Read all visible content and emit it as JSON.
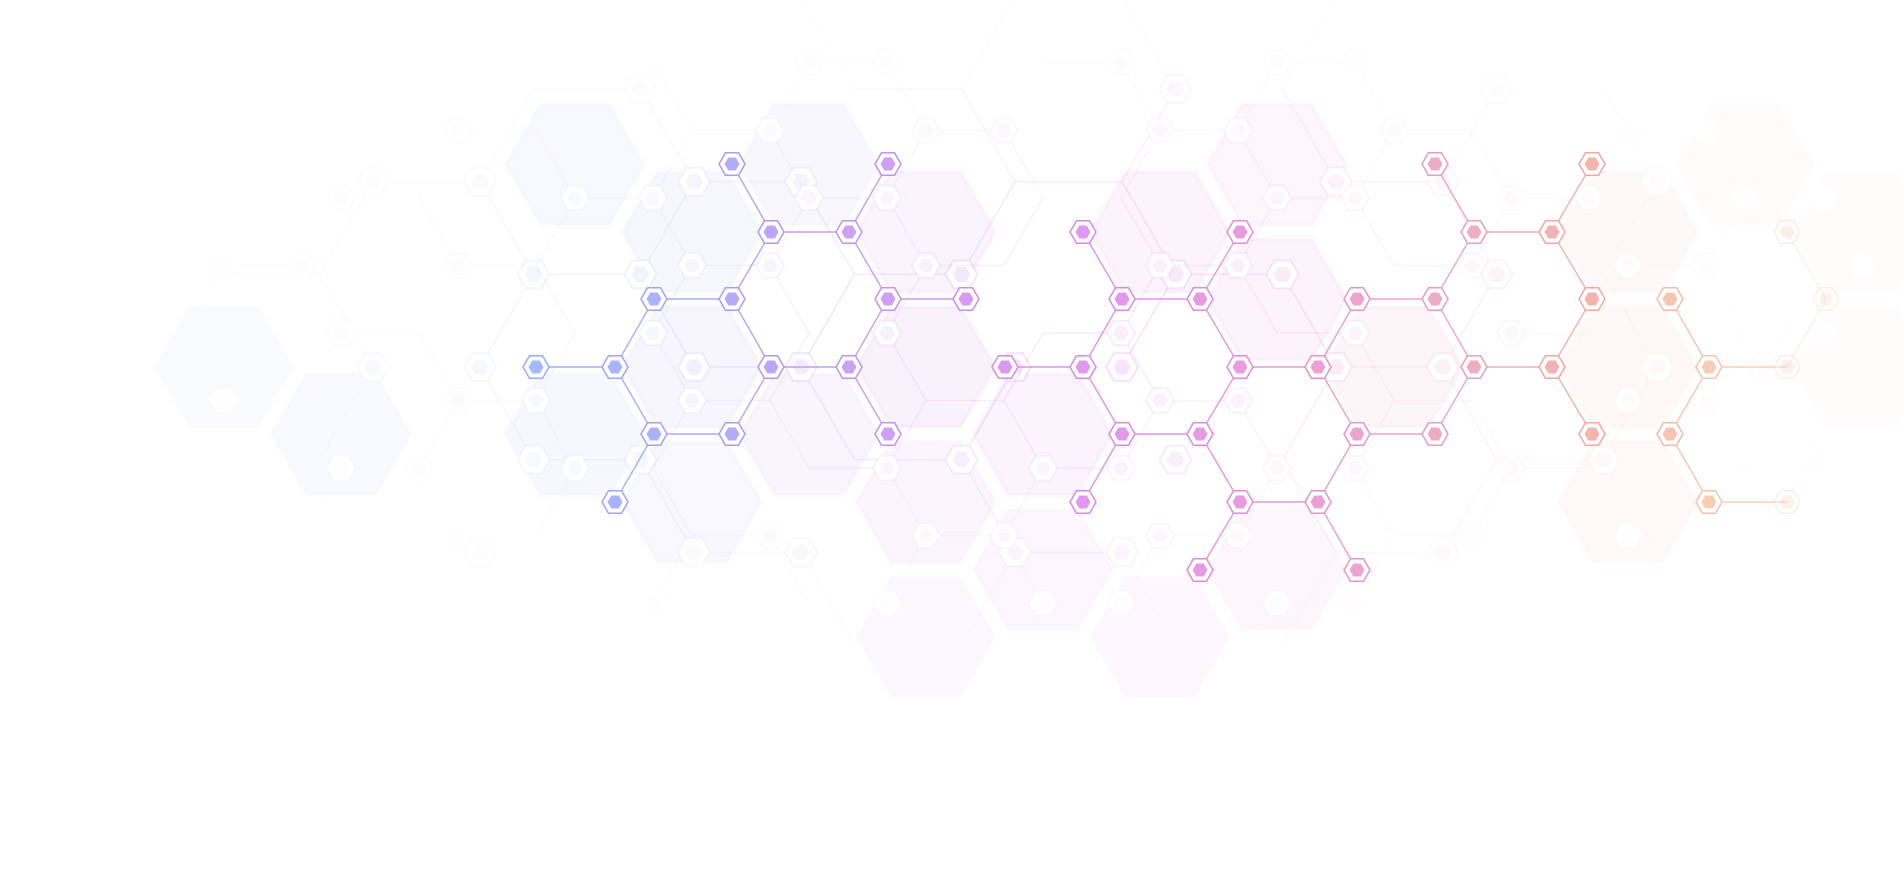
{
  "background": "#ffffff",
  "palette": {
    "blue": "#8fb0ff",
    "violet": "#a79cf5",
    "purple": "#c58ff0",
    "magenta": "#db86ee",
    "pink": "#e58ad6",
    "rose": "#e8a0b8",
    "salmon": "#f0a8a0",
    "peach": "#f6c2a8",
    "cream": "#f8dcc8"
  },
  "motif": "hexagon-network"
}
